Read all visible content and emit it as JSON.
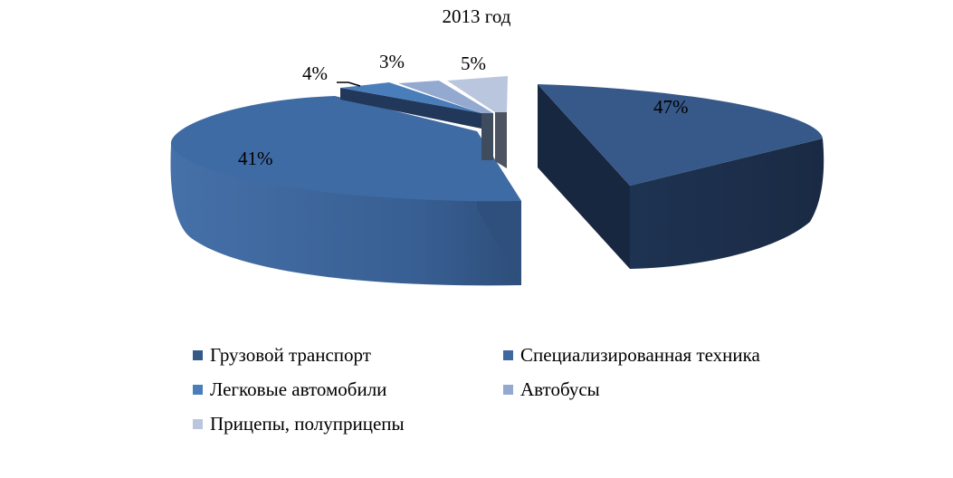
{
  "chart_data": {
    "type": "pie",
    "title": "2013 год",
    "legend_position": "bottom",
    "slices": [
      {
        "name": "Грузовой транспорт",
        "value": 47,
        "label": "47%",
        "color": "#335987"
      },
      {
        "name": "Специализированная техника",
        "value": 41,
        "label": "41%",
        "color": "#3D68A0"
      },
      {
        "name": "Легковые автомобили",
        "value": 4,
        "label": "4%",
        "color": "#4A7EBB"
      },
      {
        "name": "Автобусы",
        "value": 3,
        "label": "3%",
        "color": "#93A9CF"
      },
      {
        "name": "Прицепы, полуприцепы",
        "value": 5,
        "label": "5%",
        "color": "#B9C6DE"
      }
    ]
  }
}
